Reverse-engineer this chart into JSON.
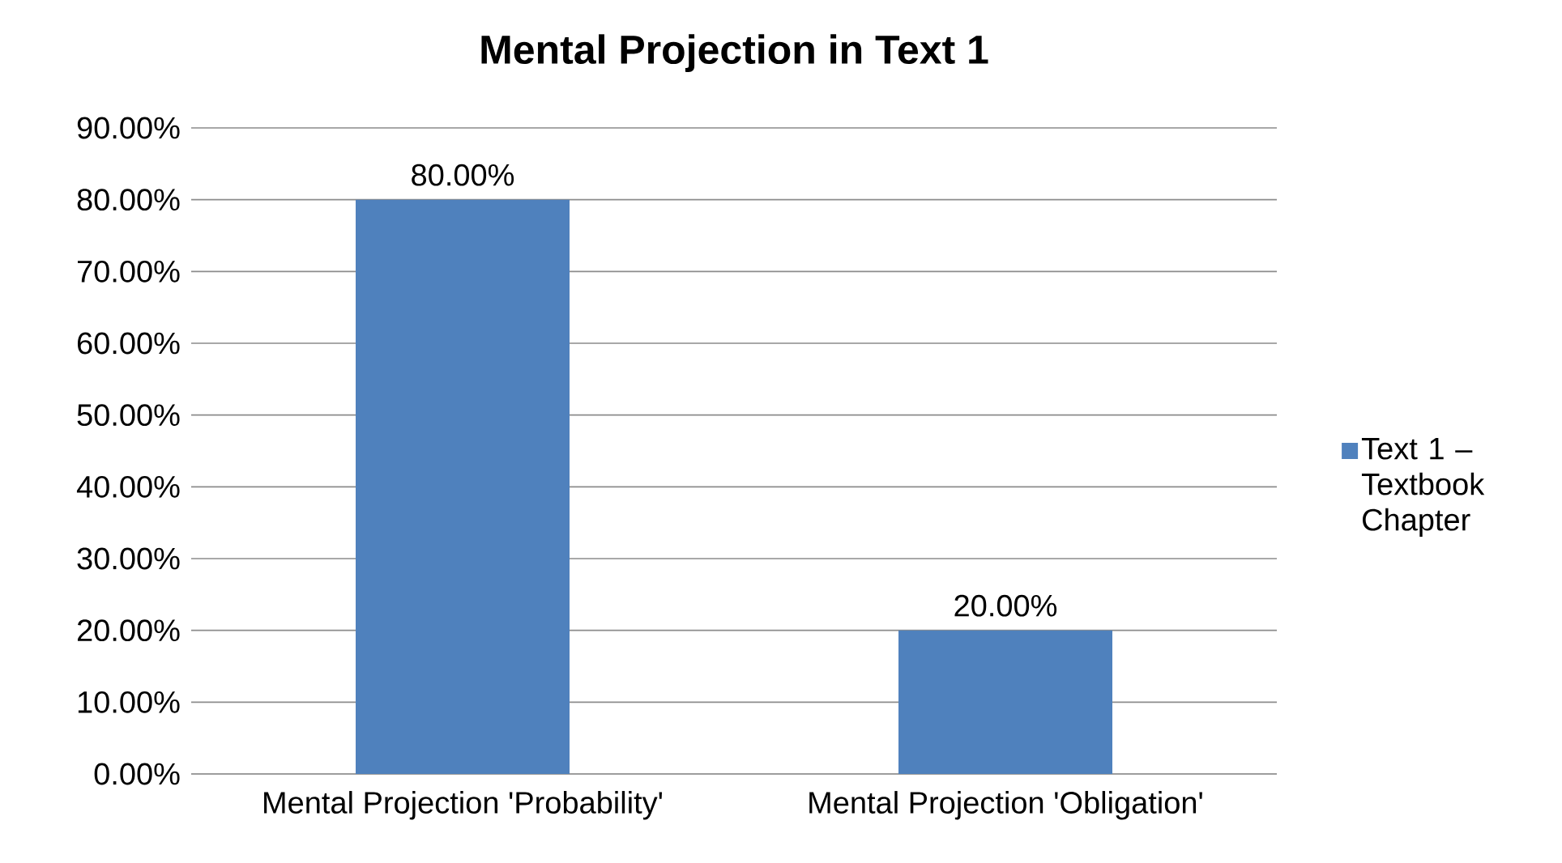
{
  "chart_data": {
    "type": "bar",
    "title": "Mental Projection in Text 1",
    "categories": [
      "Mental Projection 'Probability'",
      "Mental Projection 'Obligation'"
    ],
    "series": [
      {
        "name": "Text 1 – Textbook Chapter",
        "color": "#4f81bd",
        "values": [
          80,
          20
        ],
        "value_labels": [
          "80.00%",
          "20.00%"
        ]
      }
    ],
    "ylim": [
      0,
      90
    ],
    "yticks": [
      {
        "value": 0,
        "label": "0.00%"
      },
      {
        "value": 10,
        "label": "10.00%"
      },
      {
        "value": 20,
        "label": "20.00%"
      },
      {
        "value": 30,
        "label": "30.00%"
      },
      {
        "value": 40,
        "label": "40.00%"
      },
      {
        "value": 50,
        "label": "50.00%"
      },
      {
        "value": 60,
        "label": "60.00%"
      },
      {
        "value": 70,
        "label": "70.00%"
      },
      {
        "value": 80,
        "label": "80.00%"
      },
      {
        "value": 90,
        "label": "90.00%"
      }
    ],
    "grid": "y",
    "legend": "right"
  }
}
